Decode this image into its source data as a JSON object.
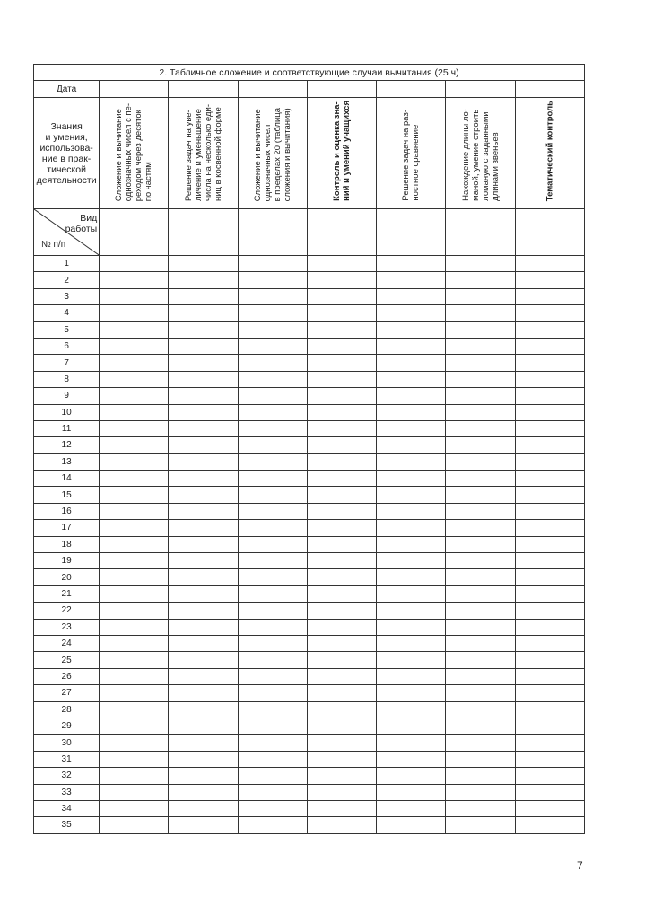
{
  "table": {
    "title": "2. Табличное сложение и соответствующие случаи вычитания (25 ч)",
    "date_label": "Дата",
    "knowledge_label": "Знания\nи умения,\nиспользова-\nние в прак-\nтической\nдеятельности",
    "work_type_label": "Вид\nработы",
    "number_label": "№ п/п",
    "columns": [
      {
        "text": "Сложение и вычитание\nоднозначных чисел с пе-\nреходом через десяток\nпо частям",
        "bold": false
      },
      {
        "text": "Решение задач на уве-\nличение и уменьшение\nчисла на несколько еди-\nниц в косвенной форме",
        "bold": false
      },
      {
        "text": "Сложение и вычитание\nоднозначных чисел\nв пределах 20 (таблица\nсложения и вычитания)",
        "bold": false
      },
      {
        "text": "Контроль и оценка зна-\nний и умений учащихся",
        "bold": true
      },
      {
        "text": "Решение задач на раз-\nностное сравнение",
        "bold": false
      },
      {
        "text": "Нахождение длины ло-\nманой, умение строить\nломаную с заданными\nдлинами звеньев",
        "bold": false
      },
      {
        "text": "Тематический контроль",
        "bold": true
      }
    ],
    "rows": [
      "1",
      "2",
      "3",
      "4",
      "5",
      "6",
      "7",
      "8",
      "9",
      "10",
      "11",
      "12",
      "13",
      "14",
      "15",
      "16",
      "17",
      "18",
      "19",
      "20",
      "21",
      "22",
      "23",
      "24",
      "25",
      "26",
      "27",
      "28",
      "29",
      "30",
      "31",
      "32",
      "33",
      "34",
      "35"
    ]
  },
  "page_number": "7"
}
